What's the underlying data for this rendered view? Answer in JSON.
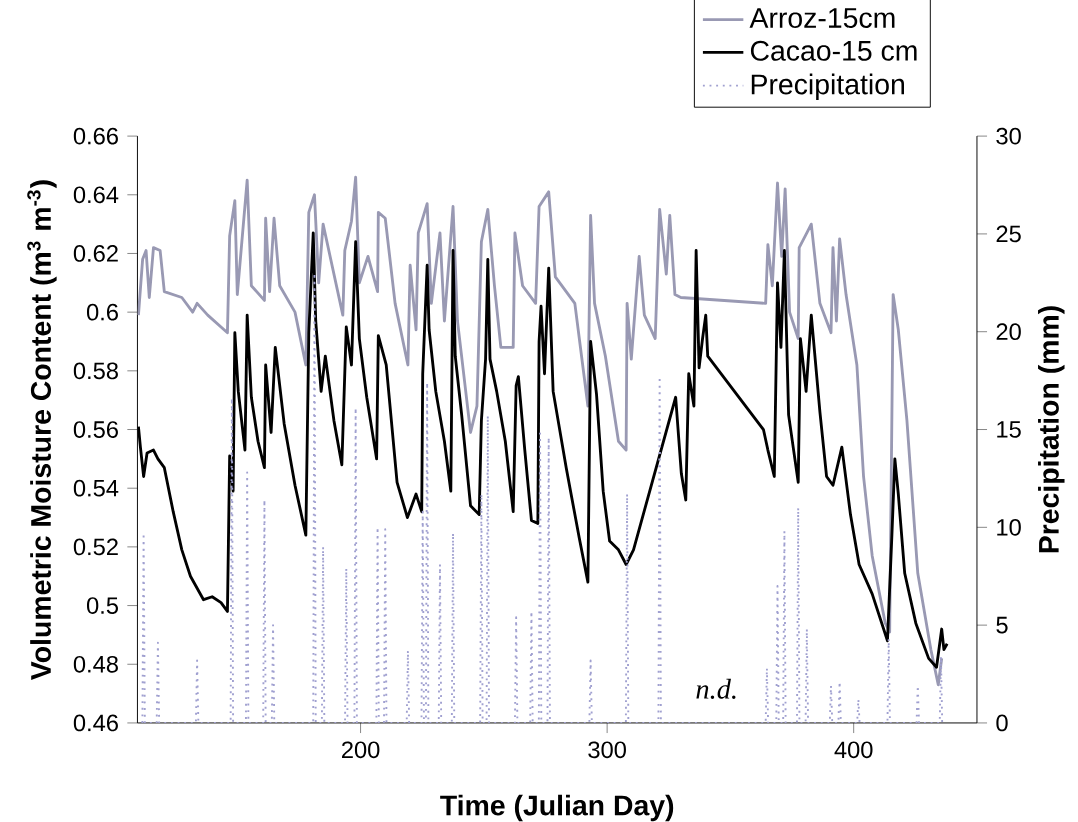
{
  "chart_data": {
    "type": "line",
    "xlabel": "Time (Julian Day)",
    "ylabel": "Volumetric Moisture Content (m$^{3}$ m$^{-3}$)",
    "y2label": "Precipitation (mm)",
    "xlim": [
      109.5,
      450
    ],
    "xticks": [
      200,
      300,
      400
    ],
    "ylim": [
      0.46,
      0.66
    ],
    "yticks": [
      0.46,
      0.48,
      0.5,
      0.52,
      0.54,
      0.56,
      0.58,
      0.6,
      0.62,
      0.64,
      0.66
    ],
    "y2lim": [
      0,
      30
    ],
    "y2ticks": [
      0,
      5,
      10,
      15,
      20,
      25,
      30
    ],
    "legend": "top right",
    "annotations": [
      "*n.d.*"
    ],
    "series": [
      {
        "name": "Arroz-15cm",
        "color": "#9999b3",
        "x": [
          109.9,
          111.6,
          113,
          114.3,
          116,
          118.7,
          120.4,
          127.5,
          131.9,
          133.7,
          138,
          146,
          146.9,
          149,
          150,
          154,
          155.7,
          161,
          161.5,
          163.1,
          164.9,
          167.2,
          173.4,
          177.8,
          179,
          181.3,
          183,
          184.8,
          192.8,
          193.6,
          196.3,
          198,
          199.5,
          203,
          206.9,
          207.2,
          210,
          214,
          219.2,
          220.1,
          222.5,
          223.4,
          227,
          228.7,
          232.2,
          234,
          237.5,
          239.3,
          244.6,
          247.2,
          249,
          251.6,
          254.3,
          256.9,
          261.9,
          262.6,
          265.7,
          271,
          272.4,
          276.3,
          279,
          286.9,
          292.2,
          293.3,
          294.9,
          299.3,
          304.6,
          307.7,
          308.1,
          309.8,
          313,
          315.1,
          319.5,
          321.3,
          324,
          325.4,
          327.5,
          329.9,
          364.3,
          365.2,
          367,
          369.1,
          370.8,
          372.2,
          374,
          377.5,
          377.9,
          381,
          382.8,
          386.3,
          390.8,
          391.6,
          393,
          394.3,
          396.9,
          401.3,
          404,
          407.5,
          412.8,
          414.6,
          416,
          418.1,
          421.6,
          426,
          431.3,
          434.3,
          435.7
        ],
        "values": [
          0.599,
          0.618,
          0.621,
          0.605,
          0.622,
          0.621,
          0.607,
          0.605,
          0.6,
          0.603,
          0.599,
          0.593,
          0.626,
          0.638,
          0.606,
          0.645,
          0.609,
          0.604,
          0.632,
          0.607,
          0.632,
          0.609,
          0.6,
          0.582,
          0.634,
          0.64,
          0.61,
          0.63,
          0.599,
          0.621,
          0.631,
          0.646,
          0.61,
          0.619,
          0.607,
          0.634,
          0.632,
          0.603,
          0.582,
          0.616,
          0.594,
          0.627,
          0.637,
          0.603,
          0.627,
          0.597,
          0.636,
          0.597,
          0.559,
          0.568,
          0.624,
          0.635,
          0.609,
          0.588,
          0.588,
          0.627,
          0.609,
          0.603,
          0.636,
          0.641,
          0.612,
          0.603,
          0.568,
          0.633,
          0.603,
          0.585,
          0.556,
          0.553,
          0.603,
          0.584,
          0.619,
          0.599,
          0.591,
          0.635,
          0.613,
          0.633,
          0.606,
          0.605,
          0.603,
          0.623,
          0.609,
          0.644,
          0.619,
          0.642,
          0.6,
          0.591,
          0.622,
          0.627,
          0.63,
          0.603,
          0.593,
          0.622,
          0.597,
          0.625,
          0.606,
          0.582,
          0.544,
          0.517,
          0.494,
          0.491,
          0.606,
          0.594,
          0.563,
          0.511,
          0.485,
          0.473,
          0.482
        ]
      },
      {
        "name": "Cacao-15 cm",
        "color": "#000000",
        "x": [
          109.9,
          110.7,
          112,
          113.4,
          116,
          117.8,
          120.4,
          124,
          127.5,
          131,
          136.3,
          139.8,
          143.4,
          146,
          146.9,
          148.3,
          149,
          150.4,
          153.1,
          154,
          155.7,
          158.4,
          161,
          161.5,
          163.7,
          165.4,
          169,
          173.4,
          177.8,
          179,
          180.8,
          181.8,
          184,
          185.7,
          189.2,
          192.4,
          194.2,
          196.3,
          198,
          199.5,
          202.5,
          206.5,
          207.2,
          210.4,
          214.8,
          219,
          222.5,
          224.8,
          225.2,
          227,
          227.8,
          230.5,
          234,
          236.6,
          237.5,
          238.4,
          241,
          244.6,
          248.1,
          249,
          250.7,
          251.6,
          252.5,
          255.2,
          258.7,
          261.9,
          263.1,
          264,
          266.6,
          269.3,
          271.9,
          272.4,
          273.2,
          274.6,
          276.3,
          278.1,
          283.4,
          288.7,
          292.2,
          293.3,
          295.7,
          298.4,
          301,
          304.6,
          307.7,
          310.7,
          327.8,
          330.1,
          331.9,
          333.1,
          335.2,
          336.1,
          337.3,
          338.7,
          340,
          340.8,
          363.4,
          365.2,
          367.8,
          369.1,
          370.5,
          371.9,
          373.6,
          377.5,
          378.4,
          380.7,
          382.8,
          386.3,
          389,
          391.6,
          395.2,
          398.7,
          402.2,
          407.5,
          413.7,
          415.5,
          416.7,
          418.1,
          420.7,
          425.2,
          430.4,
          433.6,
          435.7,
          436.6,
          437.9
        ],
        "values": [
          0.561,
          0.554,
          0.544,
          0.552,
          0.553,
          0.55,
          0.547,
          0.532,
          0.519,
          0.51,
          0.502,
          0.503,
          0.501,
          0.498,
          0.551,
          0.539,
          0.593,
          0.573,
          0.553,
          0.599,
          0.571,
          0.556,
          0.547,
          0.582,
          0.559,
          0.588,
          0.562,
          0.541,
          0.524,
          0.593,
          0.627,
          0.597,
          0.573,
          0.585,
          0.563,
          0.548,
          0.595,
          0.582,
          0.624,
          0.591,
          0.571,
          0.55,
          0.592,
          0.582,
          0.542,
          0.53,
          0.538,
          0.532,
          0.579,
          0.616,
          0.594,
          0.573,
          0.556,
          0.539,
          0.621,
          0.585,
          0.565,
          0.534,
          0.531,
          0.563,
          0.584,
          0.618,
          0.584,
          0.573,
          0.556,
          0.532,
          0.575,
          0.578,
          0.553,
          0.529,
          0.528,
          0.59,
          0.602,
          0.579,
          0.615,
          0.573,
          0.547,
          0.523,
          0.508,
          0.59,
          0.572,
          0.539,
          0.522,
          0.519,
          0.514,
          0.519,
          0.571,
          0.545,
          0.536,
          0.579,
          0.568,
          0.621,
          0.581,
          0.591,
          0.599,
          0.585,
          0.56,
          0.553,
          0.544,
          0.61,
          0.588,
          0.621,
          0.565,
          0.542,
          0.591,
          0.573,
          0.599,
          0.566,
          0.544,
          0.541,
          0.554,
          0.531,
          0.514,
          0.504,
          0.488,
          0.524,
          0.55,
          0.538,
          0.511,
          0.494,
          0.482,
          0.479,
          0.492,
          0.485,
          0.487
        ]
      },
      {
        "name": "Precipitation",
        "color": "#a0a0d0",
        "axis": "y2",
        "line_style": "dotted",
        "x": [
          111.5,
          112,
          112.5,
          117.3,
          117.8,
          118.3,
          133.2,
          133.7,
          134.2,
          147.3,
          147.8,
          148.3,
          153.5,
          154,
          154.5,
          160.5,
          161,
          161.5,
          164,
          164.5,
          165,
          180.8,
          181.3,
          181.8,
          184.3,
          184.8,
          185.3,
          193.7,
          194.2,
          194.7,
          197.5,
          198,
          198.5,
          206.4,
          206.9,
          207.4,
          209.5,
          210,
          210.5,
          218.7,
          219.2,
          219.7,
          224.7,
          225.2,
          225.7,
          226.5,
          227,
          227.5,
          231.7,
          232.2,
          232.7,
          237,
          237.5,
          238,
          248.5,
          249,
          249.5,
          251.1,
          251.6,
          252.1,
          262.6,
          263.1,
          263.6,
          268.8,
          269.3,
          269.8,
          272.3,
          272.8,
          273.3,
          275.8,
          276.3,
          276.8,
          292.8,
          293.3,
          293.8,
          307.6,
          308.1,
          308.6,
          320.8,
          321.3,
          321.8,
          364.3,
          364.8,
          365.3,
          368.6,
          369.1,
          369.6,
          371.4,
          371.9,
          372.4,
          377,
          377.5,
          378,
          380.5,
          381,
          381.5,
          390.3,
          390.8,
          391.3,
          393.8,
          394.3,
          394.8,
          401.4,
          401.9,
          402.4,
          413.7,
          414.2,
          414.7,
          425.5,
          426,
          426.5,
          434.9,
          435.4,
          435.9
        ],
        "values": [
          0,
          9.7,
          0,
          0,
          4.1,
          0,
          0,
          3.2,
          0,
          0,
          16.6,
          0,
          0,
          12.8,
          0,
          0,
          11.4,
          0,
          0,
          5,
          0,
          0,
          23,
          0,
          0,
          9,
          0,
          0,
          7.9,
          0,
          0,
          16.1,
          0,
          0,
          10,
          0,
          0,
          9.9,
          0,
          0,
          3.7,
          0,
          0,
          10.8,
          0,
          0,
          17.4,
          0,
          0,
          8.1,
          0,
          0,
          9.7,
          0,
          0,
          11.7,
          0,
          0,
          15.7,
          0,
          0,
          5.4,
          0,
          0,
          5.7,
          0,
          0,
          14.8,
          0,
          0,
          14.6,
          0,
          0,
          3.2,
          0,
          0,
          11.7,
          0,
          0,
          17.7,
          0,
          0,
          2.8,
          0,
          0,
          7,
          0,
          0,
          9.8,
          0,
          0,
          11,
          0,
          0,
          4.8,
          0,
          0,
          1.9,
          0,
          0,
          2.1,
          0,
          0,
          1.2,
          0,
          0,
          4.3,
          0,
          0,
          1.9,
          0,
          0,
          3.4,
          0
        ]
      }
    ]
  }
}
